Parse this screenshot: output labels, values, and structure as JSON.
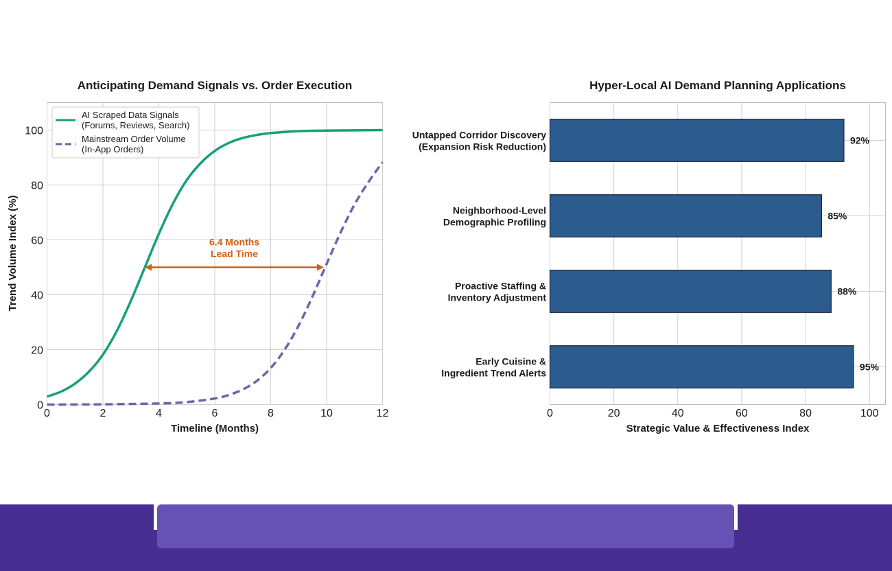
{
  "colors": {
    "signals": "#16a07a",
    "orders": "#6f63ad",
    "annotation": "#d35f12",
    "bars": "#2c5b8e",
    "bar_edge": "#14263f",
    "grid": "#cfcfcf",
    "footer": "#472e93",
    "footer_panel": "#6652b4"
  },
  "chart_data": [
    {
      "type": "line",
      "title": "Anticipating Demand Signals vs. Order Execution",
      "xlabel": "Timeline (Months)",
      "ylabel": "Trend Volume Index (%)",
      "xlim": [
        0,
        12
      ],
      "ylim": [
        0,
        110
      ],
      "xticks": [
        0,
        2,
        4,
        6,
        8,
        10,
        12
      ],
      "yticks": [
        0,
        20,
        40,
        60,
        80,
        100
      ],
      "grid": true,
      "legend_position": "top-left",
      "series": [
        {
          "name": "AI Scraped Data Signals\n(Forums, Reviews, Search)",
          "style": "solid",
          "x": [
            0,
            0.5,
            1,
            1.5,
            2,
            2.5,
            3,
            3.5,
            4,
            4.5,
            5,
            5.5,
            6,
            6.5,
            7,
            7.5,
            8,
            9,
            10,
            11,
            12
          ],
          "y": [
            2.9,
            4.7,
            7.6,
            12.0,
            18.2,
            26.9,
            37.8,
            50.0,
            62.2,
            73.1,
            81.8,
            88.0,
            92.4,
            95.3,
            97.1,
            98.2,
            98.9,
            99.6,
            99.8,
            99.9,
            100.0
          ]
        },
        {
          "name": "Mainstream Order Volume\n(In-App Orders)",
          "style": "dashed",
          "x": [
            0,
            2,
            4,
            5,
            6,
            6.5,
            7,
            7.5,
            8,
            8.5,
            9,
            9.5,
            10,
            10.5,
            11,
            11.5,
            12
          ],
          "y": [
            0.0,
            0.1,
            0.4,
            0.9,
            2.2,
            3.5,
            5.5,
            8.6,
            13.3,
            20.0,
            28.8,
            39.5,
            51.2,
            62.7,
            72.9,
            81.1,
            88.3
          ]
        }
      ],
      "annotation": {
        "text": "6.4 Months\nLead Time",
        "x_start": 3.5,
        "x_end": 9.9,
        "y": 50
      }
    },
    {
      "type": "bar",
      "orientation": "horizontal",
      "title": "Hyper-Local AI Demand Planning Applications",
      "xlabel": "Strategic Value & Effectiveness Index",
      "xlim": [
        0,
        105
      ],
      "xticks": [
        0,
        20,
        40,
        60,
        80,
        100
      ],
      "grid": true,
      "categories": [
        "Untapped Corridor Discovery\n(Expansion Risk Reduction)",
        "Neighborhood-Level\nDemographic Profiling",
        "Proactive Staffing &\nInventory Adjustment",
        "Early Cuisine &\nIngredient Trend Alerts"
      ],
      "values": [
        92,
        85,
        88,
        95
      ],
      "value_labels": [
        "92%",
        "85%",
        "88%",
        "95%"
      ]
    }
  ]
}
